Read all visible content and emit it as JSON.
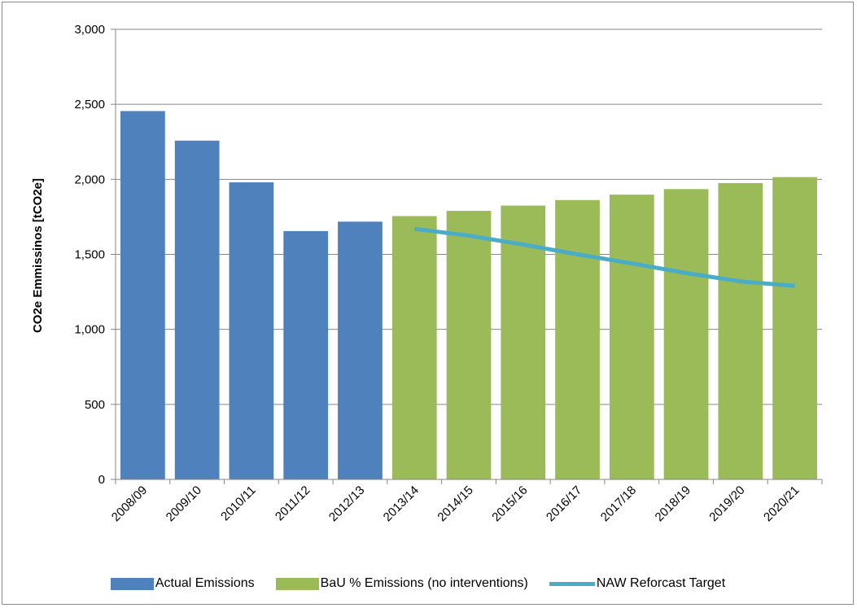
{
  "chart_data": {
    "type": "bar",
    "title": "",
    "xlabel": "",
    "ylabel": "CO2e Emmissinos [tCO2e]",
    "ylim": [
      0,
      3000
    ],
    "yticks": [
      0,
      500,
      1000,
      1500,
      2000,
      2500,
      3000
    ],
    "ytick_labels": [
      "0",
      "500",
      "1,000",
      "1,500",
      "2,000",
      "2,500",
      "3,000"
    ],
    "grid": true,
    "legend_position": "bottom",
    "categories": [
      "2008/09",
      "2009/10",
      "2010/11",
      "2011/12",
      "2012/13",
      "2013/14",
      "2014/15",
      "2015/16",
      "2016/17",
      "2017/18",
      "2018/19",
      "2019/20",
      "2020/21"
    ],
    "series": [
      {
        "name": "Actual Emissions",
        "type": "bar",
        "color": "#4f81bd",
        "values": [
          2455,
          2258,
          1980,
          1655,
          1718,
          null,
          null,
          null,
          null,
          null,
          null,
          null,
          null
        ]
      },
      {
        "name": "BaU % Emissions (no interventions)",
        "type": "bar",
        "color": "#9bbb59",
        "values": [
          null,
          null,
          null,
          null,
          null,
          1755,
          1790,
          1825,
          1862,
          1898,
          1935,
          1975,
          2015
        ]
      },
      {
        "name": "NAW Reforcast Target",
        "type": "line",
        "color": "#4bacc6",
        "values": [
          null,
          null,
          null,
          null,
          null,
          1670,
          1625,
          1565,
          1500,
          1440,
          1375,
          1320,
          1290
        ]
      }
    ]
  }
}
